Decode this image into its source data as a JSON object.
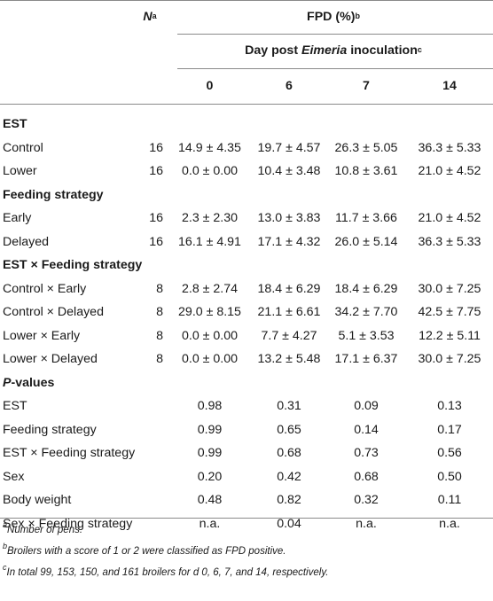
{
  "header": {
    "n_label": "N",
    "n_sup": "a",
    "fpd_label": "FPD (%)",
    "fpd_sup": "b",
    "day_prefix": "Day post ",
    "day_italic": "Eimeria",
    "day_suffix": " inoculation",
    "day_sup": "c",
    "days": [
      "0",
      "6",
      "7",
      "14"
    ]
  },
  "sections": [
    {
      "title": "EST",
      "rows": [
        {
          "label": "Control",
          "n": "16",
          "v": [
            "14.9 ± 4.35",
            "19.7 ± 4.57",
            "26.3 ± 5.05",
            "36.3 ± 5.33"
          ]
        },
        {
          "label": "Lower",
          "n": "16",
          "v": [
            "0.0 ± 0.00",
            "10.4 ± 3.48",
            "10.8 ± 3.61",
            "21.0 ± 4.52"
          ]
        }
      ]
    },
    {
      "title": "Feeding strategy",
      "rows": [
        {
          "label": "Early",
          "n": "16",
          "v": [
            "2.3 ± 2.30",
            "13.0 ± 3.83",
            "11.7 ± 3.66",
            "21.0 ± 4.52"
          ]
        },
        {
          "label": "Delayed",
          "n": "16",
          "v": [
            "16.1 ± 4.91",
            "17.1 ± 4.32",
            "26.0 ± 5.14",
            "36.3 ± 5.33"
          ]
        }
      ]
    },
    {
      "title": "EST × Feeding strategy",
      "rows": [
        {
          "label": "Control × Early",
          "n": "8",
          "v": [
            "2.8 ± 2.74",
            "18.4 ± 6.29",
            "18.4 ± 6.29",
            "30.0 ± 7.25"
          ]
        },
        {
          "label": "Control × Delayed",
          "n": "8",
          "v": [
            "29.0 ± 8.15",
            "21.1 ± 6.61",
            "34.2 ± 7.70",
            "42.5 ± 7.75"
          ]
        },
        {
          "label": "Lower × Early",
          "n": "8",
          "v": [
            "0.0 ± 0.00",
            "7.7 ± 4.27",
            "5.1 ± 3.53",
            "12.2 ± 5.11"
          ]
        },
        {
          "label": "Lower × Delayed",
          "n": "8",
          "v": [
            "0.0 ± 0.00",
            "13.2 ± 5.48",
            "17.1 ± 6.37",
            "30.0 ± 7.25"
          ]
        }
      ]
    },
    {
      "title_italic": "P",
      "title": "-values",
      "rows": [
        {
          "label": "EST",
          "n": "",
          "v": [
            "0.98",
            "0.31",
            "0.09",
            "0.13"
          ]
        },
        {
          "label": "Feeding strategy",
          "n": "",
          "v": [
            "0.99",
            "0.65",
            "0.14",
            "0.17"
          ]
        },
        {
          "label": "EST × Feeding strategy",
          "n": "",
          "v": [
            "0.99",
            "0.68",
            "0.73",
            "0.56"
          ]
        },
        {
          "label": "Sex",
          "n": "",
          "v": [
            "0.20",
            "0.42",
            "0.68",
            "0.50"
          ]
        },
        {
          "label": "Body weight",
          "n": "",
          "v": [
            "0.48",
            "0.82",
            "0.32",
            "0.11"
          ]
        },
        {
          "label": "Sex × Feeding strategy",
          "n": "",
          "v": [
            "n.a.",
            "0.04",
            "n.a.",
            "n.a."
          ]
        }
      ]
    }
  ],
  "footnotes": [
    {
      "sup": "a",
      "text": "Number of pens."
    },
    {
      "sup": "b",
      "text": "Broilers with a score of 1 or 2 were classified as FPD positive."
    },
    {
      "sup": "c",
      "text": "In total 99, 153, 150, and 161 broilers for d 0, 6, 7, and 14, respectively."
    }
  ]
}
